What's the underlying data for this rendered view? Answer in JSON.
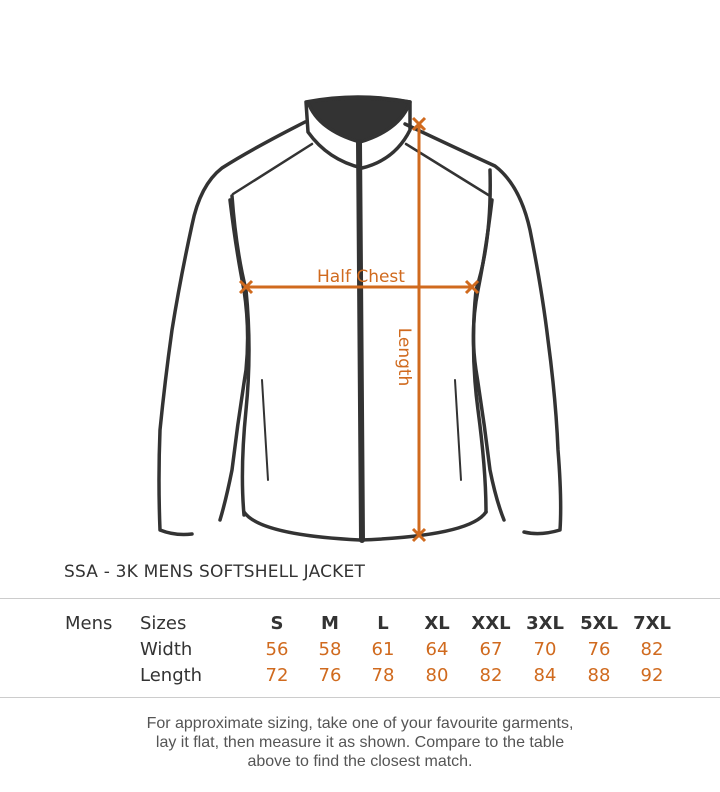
{
  "diagram": {
    "half_chest_label": "Half Chest",
    "length_label": "Length",
    "measure_color": "#d06a1e",
    "outline_color": "#333333"
  },
  "product_title": "SSA - 3K  MENS SOFTSHELL JACKET",
  "size_table": {
    "group_label": "Mens",
    "row_labels": [
      "Sizes",
      "Width",
      "Length"
    ],
    "sizes": [
      "S",
      "M",
      "L",
      "XL",
      "XXL",
      "3XL",
      "5XL",
      "7XL"
    ],
    "width": [
      "56",
      "58",
      "61",
      "64",
      "67",
      "70",
      "76",
      "82"
    ],
    "length": [
      "72",
      "76",
      "78",
      "80",
      "82",
      "84",
      "88",
      "92"
    ]
  },
  "note": {
    "lines": [
      "For approximate sizing, take one of your favourite garments,",
      "lay it flat, then measure it as shown. Compare to the table",
      "above to find the closest match."
    ]
  }
}
